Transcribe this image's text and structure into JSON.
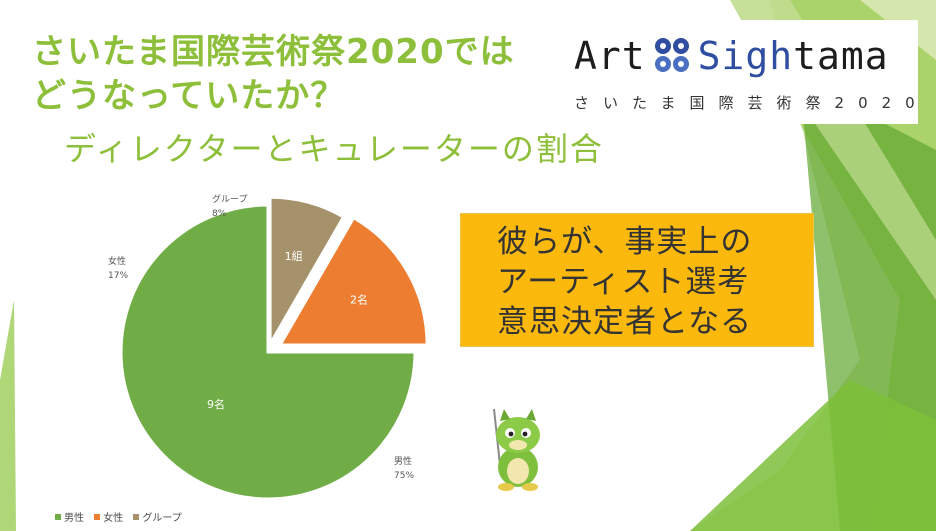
{
  "slide": {
    "title_line1": "さいたま国際芸術祭2020では",
    "title_line2": "どうなっていたか？",
    "subtitle": "ディレクターとキュレーターの割合"
  },
  "logo": {
    "part1": "Art",
    "part2": "Sigh",
    "part3": "tama",
    "sub": "さいたま国際芸術祭2020"
  },
  "callout": {
    "line1": "彼らが、事実上の",
    "line2": "アーティスト選考",
    "line3": "意思決定者となる"
  },
  "colors": {
    "title": "#8dbf3a",
    "male": "#70ad47",
    "female": "#ed7d31",
    "group": "#a5926b",
    "callout": "#fbb90d"
  },
  "chart_data": {
    "type": "pie",
    "categories": [
      "男性",
      "女性",
      "グループ"
    ],
    "values": [
      9,
      2,
      1
    ],
    "value_labels": [
      "9名",
      "2名",
      "1組"
    ],
    "percent_labels": [
      "75%",
      "17%",
      "8%"
    ],
    "legend": [
      "男性",
      "女性",
      "グループ"
    ],
    "legend_position": "bottom-left"
  }
}
